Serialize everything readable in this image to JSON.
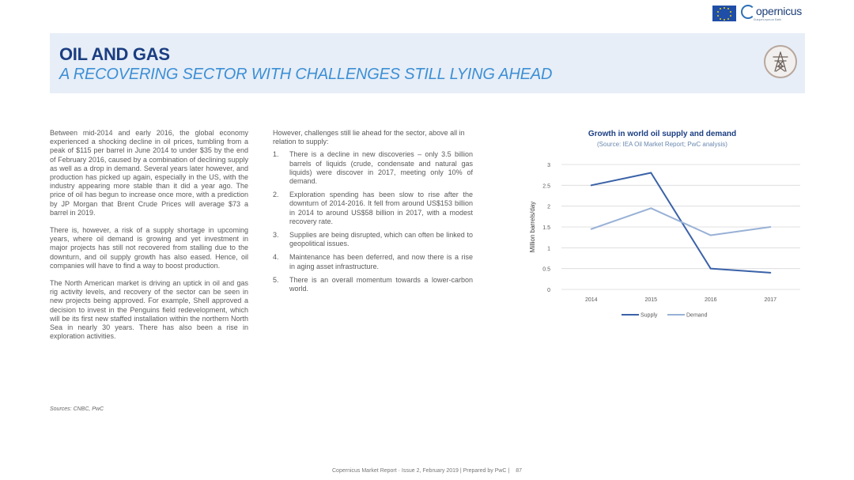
{
  "header": {
    "brand": "opernicus",
    "brand_tagline": "Europe's eyes on Earth",
    "title": "OIL AND GAS",
    "subtitle": "A RECOVERING SECTOR WITH CHALLENGES STILL LYING AHEAD",
    "sector_icon": "pylon-icon"
  },
  "left_column": {
    "paragraphs": [
      "Between mid-2014 and early 2016, the global economy experienced a shocking decline in oil prices, tumbling from a peak of $115 per barrel in June 2014 to under $35 by the end of February 2016, caused by a combination of declining supply as well as a drop in demand. Several years later however, and production has picked up again, especially in the US, with the industry appearing more stable than it did a year ago. The price of oil has begun to increase once more, with a prediction by JP Morgan that Brent Crude Prices will average $73 a barrel in 2019.",
      "There is, however, a risk of a supply shortage in upcoming years, where oil demand is growing and yet investment in major projects has still not recovered from stalling due to the downturn, and oil supply growth has also eased. Hence, oil companies will have to find a way to boost production.",
      "The North American market is driving an uptick in oil and gas rig activity levels, and recovery of the sector can be seen in new projects being approved. For example, Shell approved a decision to invest in the Penguins field redevelopment, which will be its first new staffed installation within the northern North Sea in nearly 30 years. There has also been a rise in exploration activities."
    ],
    "sources": "Sources: CNBC, PwC"
  },
  "middle_column": {
    "intro": "However, challenges still lie ahead for the sector, above all in relation to supply:",
    "items": [
      {
        "num": "1.",
        "text": "There is a decline in new discoveries – only 3.5 billion barrels of liquids (crude, condensate and natural gas liquids) were discover in 2017, meeting only 10% of demand."
      },
      {
        "num": "2.",
        "text": "Exploration spending has been slow to rise after the downturn of 2014-2016. It fell from around US$153 billion in 2014 to around US$58 billion in 2017, with a modest recovery rate."
      },
      {
        "num": "3.",
        "text": "Supplies are being disrupted, which can often be linked to geopolitical issues."
      },
      {
        "num": "4.",
        "text": "Maintenance has been deferred, and now there is a rise in aging asset infrastructure."
      },
      {
        "num": "5.",
        "text": "There is an overall momentum towards a lower-carbon world."
      }
    ]
  },
  "chart_data": {
    "type": "line",
    "title": "Growth in world oil supply and demand",
    "subtitle": "(Source: IEA Oil Market Report; PwC analysis)",
    "ylabel": "Million barrels/day",
    "xlabel": "",
    "x": [
      "2014",
      "2015",
      "2016",
      "2017"
    ],
    "ylim": [
      0,
      3
    ],
    "yticks": [
      "0",
      "0.5",
      "1",
      "1.5",
      "2",
      "2.5",
      "3"
    ],
    "grid": true,
    "legend_position": "bottom",
    "series": [
      {
        "name": "Supply",
        "values": [
          2.5,
          2.8,
          0.5,
          0.4
        ],
        "color": "#3a62a8"
      },
      {
        "name": "Demand",
        "values": [
          1.45,
          1.95,
          1.3,
          1.5
        ],
        "color": "#98b1d6"
      }
    ]
  },
  "footer": {
    "text": "Copernicus Market Report · Issue 2, February 2019 | Prepared by PwC |",
    "page": "87"
  }
}
